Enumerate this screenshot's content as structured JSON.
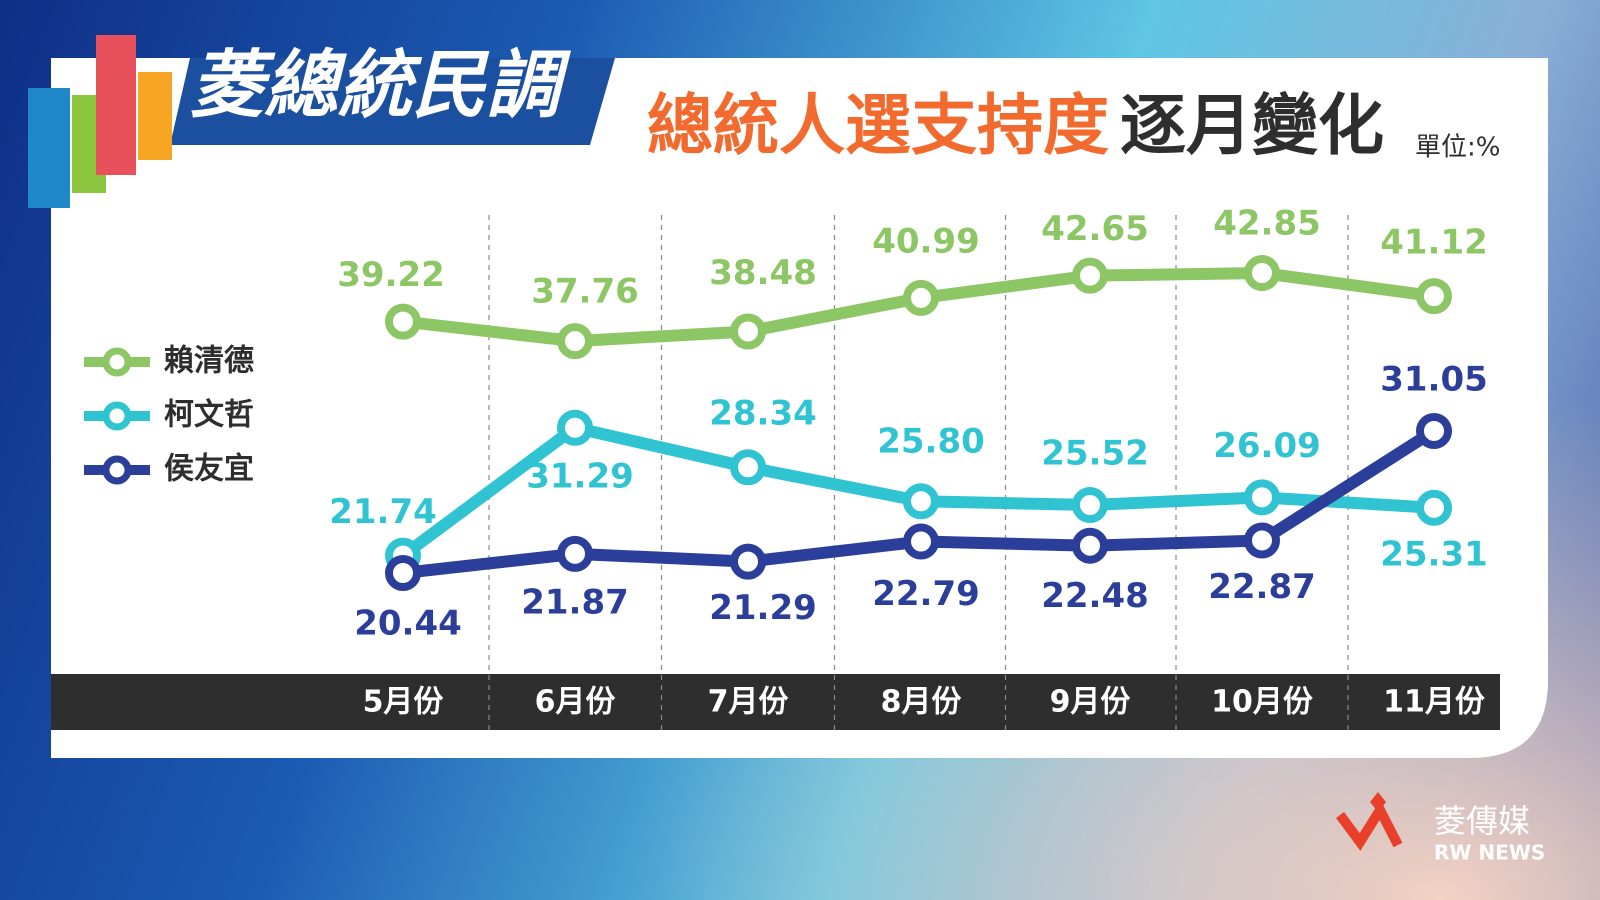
{
  "brand": {
    "logo": "菱總統民調",
    "publisher": "菱傳媒",
    "publisher_en": "RW NEWS"
  },
  "chart_data": {
    "type": "line",
    "title": {
      "highlight": "總統人選支持度",
      "rest": "逐月變化"
    },
    "unit": "單位:%",
    "categories": [
      "5月份",
      "6月份",
      "7月份",
      "8月份",
      "9月份",
      "10月份",
      "11月份"
    ],
    "series": [
      {
        "name": "賴清德",
        "color": "#8cc665",
        "values": [
          39.22,
          37.76,
          38.48,
          40.99,
          42.65,
          42.85,
          41.12
        ],
        "value_labels": [
          "39.22",
          "37.76",
          "38.48",
          "40.99",
          "42.65",
          "42.85",
          "41.12"
        ]
      },
      {
        "name": "柯文哲",
        "color": "#30c4d2",
        "values": [
          21.74,
          31.29,
          28.34,
          25.8,
          25.52,
          26.09,
          25.31
        ],
        "value_labels": [
          "21.74",
          "31.29",
          "28.34",
          "25.80",
          "25.52",
          "26.09",
          "25.31"
        ]
      },
      {
        "name": "侯友宜",
        "color": "#2b3f9a",
        "values": [
          20.44,
          21.87,
          21.29,
          22.79,
          22.48,
          22.87,
          31.05
        ],
        "value_labels": [
          "20.44",
          "21.87",
          "21.29",
          "22.79",
          "22.48",
          "22.87",
          "31.05"
        ]
      }
    ]
  }
}
